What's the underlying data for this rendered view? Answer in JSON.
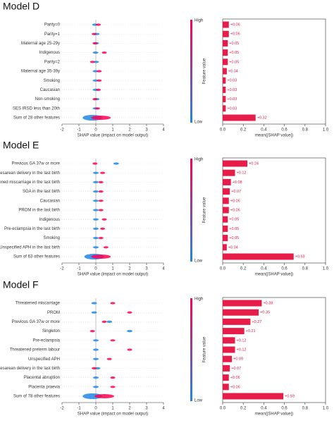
{
  "chart_data": [
    {
      "type": "beeswarm",
      "title": "Model D",
      "categories": [
        "Parity=0",
        "Parity=1",
        "Maternal age 25-29y",
        "Indigenous",
        "Parity=2",
        "Maternal age 35-39y",
        "Smoking",
        "Caucasian",
        "Non-smoking",
        "SES IRSD less than 20th",
        "Sum of 28 other features"
      ],
      "high_values": [
        0.15,
        -0.1,
        -0.05,
        0.5,
        -0.2,
        0.2,
        0.2,
        0.15,
        -0.05,
        0.1,
        0.3
      ],
      "low_values": [
        -0.05,
        0.05,
        0.02,
        -0.02,
        0.02,
        -0.02,
        -0.02,
        -0.02,
        0.05,
        -0.02,
        -0.2
      ],
      "high_color": "#ff0052",
      "low_color": "#1e88e5",
      "xlim": [
        -2,
        4
      ],
      "xticks": [
        -2,
        -1,
        0,
        1,
        2,
        3,
        4
      ],
      "xlabel": "SHAP value (impact on model output)",
      "colorbar_high": "High",
      "colorbar_low": "Low",
      "colorbar_label": "Feature value"
    },
    {
      "type": "bar",
      "orientation": "horizontal",
      "color": "#e51d48",
      "values": [
        0.06,
        0.06,
        0.05,
        0.05,
        0.05,
        0.04,
        0.03,
        0.03,
        0.03,
        0.03,
        0.32
      ],
      "value_labels": [
        "+0.06",
        "+0.06",
        "+0.05",
        "+0.05",
        "+0.05",
        "+0.04",
        "+0.03",
        "+0.03",
        "+0.03",
        "+0.03",
        "+0.32"
      ],
      "xlim": [
        0,
        1
      ],
      "xticks": [
        {
          "value": 0,
          "label": "0.0"
        },
        0.2,
        0.4,
        0.6,
        0.8,
        {
          "value": 1,
          "label": "1.0"
        }
      ],
      "xlabel": "mean(|SHAP value|)"
    },
    {
      "type": "beeswarm",
      "title": "Model E",
      "categories": [
        "Previous GA 37w or more",
        "Caesarean delivery in the last birth",
        "Threatened miscarriage in the last birth",
        "SGA in the last birth",
        "Caucasian",
        "PROM in the last birth",
        "Indigenous",
        "Pre-eclampsia in the last birth",
        "Smoking",
        "Unspecified APH in the last birth",
        "Sum of 63 other features"
      ],
      "high_values": [
        -0.05,
        0.4,
        0.3,
        0.3,
        0.3,
        0.3,
        0.5,
        0.4,
        0.3,
        0.6,
        0.3
      ],
      "low_values": [
        1.2,
        0,
        0,
        0,
        0,
        0,
        0,
        0,
        0,
        0,
        -0.1
      ],
      "high_color": "#ff0052",
      "low_color": "#1e88e5",
      "xlim": [
        -2,
        4
      ],
      "xticks": [
        -2,
        -1,
        0,
        1,
        2,
        3,
        4
      ],
      "xlabel": "SHAP value (impact on model output)",
      "colorbar_high": "High",
      "colorbar_low": "Low",
      "colorbar_label": "Feature value"
    },
    {
      "type": "bar",
      "orientation": "horizontal",
      "color": "#e51d48",
      "values": [
        0.24,
        0.12,
        0.08,
        0.07,
        0.06,
        0.06,
        0.05,
        0.05,
        0.05,
        0.04,
        0.69
      ],
      "value_labels": [
        "+0.24",
        "+0.12",
        "+0.08",
        "+0.07",
        "+0.06",
        "+0.06",
        "+0.05",
        "+0.05",
        "+0.05",
        "+0.04",
        "+0.69"
      ],
      "xlim": [
        0,
        1
      ],
      "xticks": [
        {
          "value": 0,
          "label": "0.0"
        },
        0.2,
        0.4,
        0.6,
        0.8,
        {
          "value": 1,
          "label": "1.0"
        }
      ],
      "xlabel": "mean(|SHAP value|)"
    },
    {
      "type": "beeswarm",
      "title": "Model F",
      "categories": [
        "Threatened miscarriage",
        "PROM",
        "Previous GA 37w or more",
        "Singleton",
        "Pre-eclampsia",
        "Threatened preterm labour",
        "Unspecified APH",
        "Caesarean delivery in the last birth",
        "Placental abruption",
        "Placenta praevia",
        "Sum of 78 other features"
      ],
      "high_values": [
        1.0,
        2.0,
        0.5,
        -0.2,
        1.0,
        2.0,
        0.8,
        -0.1,
        1.0,
        1.0,
        0.5
      ],
      "low_values": [
        -0.1,
        -0.1,
        0.8,
        2.0,
        0,
        0,
        0,
        0.1,
        0,
        0,
        -0.2
      ],
      "high_color": "#ff0052",
      "low_color": "#1e88e5",
      "xlim": [
        -2,
        4
      ],
      "xticks": [
        -2,
        -1,
        0,
        1,
        2,
        3,
        4
      ],
      "xlabel": "SHAP value (impact on model output)",
      "colorbar_high": "High",
      "colorbar_low": "Low",
      "colorbar_label": "Feature value"
    },
    {
      "type": "bar",
      "orientation": "horizontal",
      "color": "#e51d48",
      "values": [
        0.38,
        0.35,
        0.27,
        0.21,
        0.12,
        0.12,
        0.09,
        0.07,
        0.06,
        0.06,
        0.59
      ],
      "value_labels": [
        "+0.38",
        "+0.35",
        "+0.27",
        "+0.21",
        "+0.12",
        "+0.12",
        "+0.09",
        "+0.07",
        "+0.06",
        "+0.06",
        "+0.59"
      ],
      "xlim": [
        0,
        1
      ],
      "xticks": [
        {
          "value": 0,
          "label": "0.0"
        },
        0.2,
        0.4,
        0.6,
        0.8,
        {
          "value": 1,
          "label": "1.0"
        }
      ],
      "xlabel": "mean(|SHAP value|)"
    }
  ]
}
